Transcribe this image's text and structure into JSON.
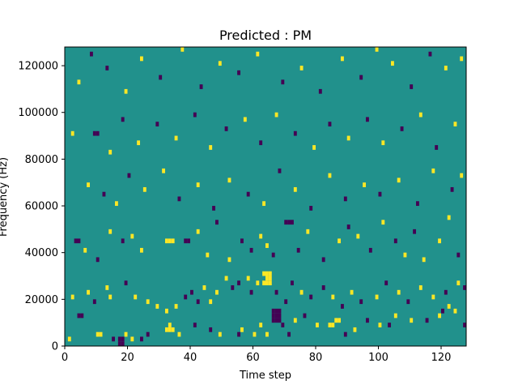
{
  "chart_data": {
    "type": "heatmap",
    "title": "Predicted : PM",
    "xlabel": "Time step",
    "ylabel": "Frequency (Hz)",
    "xlim": [
      0,
      128
    ],
    "ylim": [
      0,
      128000
    ],
    "x_ticks": [
      0,
      20,
      40,
      60,
      80,
      100,
      120
    ],
    "y_ticks": [
      0,
      20000,
      40000,
      60000,
      80000,
      100000,
      120000
    ],
    "y_tick_labels": [
      "0",
      "20000",
      "40000",
      "60000",
      "80000",
      "100000",
      "120000"
    ],
    "grid": false,
    "colors": {
      "background": "#21918c",
      "high": "#fde725",
      "low": "#440154"
    },
    "cells_note_time_step_and_frequency_bin_size": [
      1,
      2000
    ],
    "cells": [
      {
        "t": 17,
        "f": 0,
        "v": "low"
      },
      {
        "t": 18,
        "f": 0,
        "v": "low"
      },
      {
        "t": 17,
        "f": 2000,
        "v": "low"
      },
      {
        "t": 18,
        "f": 2000,
        "v": "low"
      },
      {
        "t": 1,
        "f": 2000,
        "v": "high"
      },
      {
        "t": 10,
        "f": 4000,
        "v": "high"
      },
      {
        "t": 11,
        "f": 4000,
        "v": "high"
      },
      {
        "t": 15,
        "f": 2000,
        "v": "low"
      },
      {
        "t": 19,
        "f": 4000,
        "v": "high"
      },
      {
        "t": 21,
        "f": 2000,
        "v": "high"
      },
      {
        "t": 24,
        "f": 2000,
        "v": "low"
      },
      {
        "t": 26,
        "f": 4000,
        "v": "low"
      },
      {
        "t": 32,
        "f": 6000,
        "v": "high"
      },
      {
        "t": 33,
        "f": 6000,
        "v": "high"
      },
      {
        "t": 34,
        "f": 6000,
        "v": "high"
      },
      {
        "t": 33,
        "f": 8000,
        "v": "high"
      },
      {
        "t": 36,
        "f": 4000,
        "v": "high"
      },
      {
        "t": 41,
        "f": 8000,
        "v": "low"
      },
      {
        "t": 46,
        "f": 6000,
        "v": "low"
      },
      {
        "t": 49,
        "f": 4000,
        "v": "high"
      },
      {
        "t": 55,
        "f": 4000,
        "v": "low"
      },
      {
        "t": 56,
        "f": 6000,
        "v": "high"
      },
      {
        "t": 60,
        "f": 4000,
        "v": "high"
      },
      {
        "t": 62,
        "f": 8000,
        "v": "high"
      },
      {
        "t": 64,
        "f": 4000,
        "v": "high"
      },
      {
        "t": 66,
        "f": 12000,
        "v": "low"
      },
      {
        "t": 67,
        "f": 12000,
        "v": "low"
      },
      {
        "t": 68,
        "f": 12000,
        "v": "low"
      },
      {
        "t": 66,
        "f": 14000,
        "v": "low"
      },
      {
        "t": 67,
        "f": 14000,
        "v": "low"
      },
      {
        "t": 68,
        "f": 14000,
        "v": "low"
      },
      {
        "t": 66,
        "f": 10000,
        "v": "low"
      },
      {
        "t": 67,
        "f": 10000,
        "v": "low"
      },
      {
        "t": 68,
        "f": 10000,
        "v": "low"
      },
      {
        "t": 69,
        "f": 8000,
        "v": "low"
      },
      {
        "t": 71,
        "f": 4000,
        "v": "low"
      },
      {
        "t": 73,
        "f": 10000,
        "v": "high"
      },
      {
        "t": 76,
        "f": 12000,
        "v": "low"
      },
      {
        "t": 80,
        "f": 8000,
        "v": "high"
      },
      {
        "t": 84,
        "f": 8000,
        "v": "high"
      },
      {
        "t": 85,
        "f": 8000,
        "v": "high"
      },
      {
        "t": 86,
        "f": 10000,
        "v": "high"
      },
      {
        "t": 87,
        "f": 10000,
        "v": "high"
      },
      {
        "t": 89,
        "f": 4000,
        "v": "low"
      },
      {
        "t": 92,
        "f": 6000,
        "v": "high"
      },
      {
        "t": 96,
        "f": 10000,
        "v": "low"
      },
      {
        "t": 100,
        "f": 8000,
        "v": "high"
      },
      {
        "t": 103,
        "f": 8000,
        "v": "low"
      },
      {
        "t": 105,
        "f": 12000,
        "v": "high"
      },
      {
        "t": 110,
        "f": 10000,
        "v": "high"
      },
      {
        "t": 115,
        "f": 10000,
        "v": "low"
      },
      {
        "t": 119,
        "f": 12000,
        "v": "high"
      },
      {
        "t": 120,
        "f": 14000,
        "v": "low"
      },
      {
        "t": 122,
        "f": 16000,
        "v": "high"
      },
      {
        "t": 124,
        "f": 14000,
        "v": "high"
      },
      {
        "t": 127,
        "f": 8000,
        "v": "low"
      },
      {
        "t": 4,
        "f": 12000,
        "v": "low"
      },
      {
        "t": 5,
        "f": 12000,
        "v": "low"
      },
      {
        "t": 2,
        "f": 20000,
        "v": "high"
      },
      {
        "t": 7,
        "f": 22000,
        "v": "high"
      },
      {
        "t": 9,
        "f": 18000,
        "v": "low"
      },
      {
        "t": 13,
        "f": 24000,
        "v": "high"
      },
      {
        "t": 14,
        "f": 20000,
        "v": "high"
      },
      {
        "t": 19,
        "f": 26000,
        "v": "low"
      },
      {
        "t": 22,
        "f": 20000,
        "v": "high"
      },
      {
        "t": 26,
        "f": 18000,
        "v": "high"
      },
      {
        "t": 29,
        "f": 16000,
        "v": "high"
      },
      {
        "t": 32,
        "f": 14000,
        "v": "high"
      },
      {
        "t": 35,
        "f": 16000,
        "v": "high"
      },
      {
        "t": 38,
        "f": 20000,
        "v": "low"
      },
      {
        "t": 40,
        "f": 22000,
        "v": "low"
      },
      {
        "t": 42,
        "f": 18000,
        "v": "low"
      },
      {
        "t": 44,
        "f": 24000,
        "v": "high"
      },
      {
        "t": 46,
        "f": 18000,
        "v": "high"
      },
      {
        "t": 48,
        "f": 22000,
        "v": "high"
      },
      {
        "t": 51,
        "f": 28000,
        "v": "high"
      },
      {
        "t": 53,
        "f": 24000,
        "v": "low"
      },
      {
        "t": 55,
        "f": 26000,
        "v": "low"
      },
      {
        "t": 58,
        "f": 28000,
        "v": "high"
      },
      {
        "t": 59,
        "f": 22000,
        "v": "low"
      },
      {
        "t": 61,
        "f": 26000,
        "v": "high"
      },
      {
        "t": 63,
        "f": 30000,
        "v": "high"
      },
      {
        "t": 64,
        "f": 30000,
        "v": "high"
      },
      {
        "t": 65,
        "f": 30000,
        "v": "high"
      },
      {
        "t": 63,
        "f": 26000,
        "v": "high"
      },
      {
        "t": 64,
        "f": 26000,
        "v": "high"
      },
      {
        "t": 65,
        "f": 26000,
        "v": "high"
      },
      {
        "t": 64,
        "f": 28000,
        "v": "high"
      },
      {
        "t": 65,
        "f": 28000,
        "v": "high"
      },
      {
        "t": 67,
        "f": 22000,
        "v": "low"
      },
      {
        "t": 70,
        "f": 18000,
        "v": "low"
      },
      {
        "t": 72,
        "f": 26000,
        "v": "low"
      },
      {
        "t": 75,
        "f": 22000,
        "v": "high"
      },
      {
        "t": 78,
        "f": 20000,
        "v": "low"
      },
      {
        "t": 82,
        "f": 24000,
        "v": "low"
      },
      {
        "t": 85,
        "f": 20000,
        "v": "high"
      },
      {
        "t": 88,
        "f": 16000,
        "v": "low"
      },
      {
        "t": 91,
        "f": 22000,
        "v": "high"
      },
      {
        "t": 94,
        "f": 18000,
        "v": "low"
      },
      {
        "t": 99,
        "f": 20000,
        "v": "high"
      },
      {
        "t": 102,
        "f": 26000,
        "v": "low"
      },
      {
        "t": 106,
        "f": 22000,
        "v": "high"
      },
      {
        "t": 109,
        "f": 18000,
        "v": "low"
      },
      {
        "t": 113,
        "f": 24000,
        "v": "high"
      },
      {
        "t": 117,
        "f": 20000,
        "v": "high"
      },
      {
        "t": 121,
        "f": 22000,
        "v": "low"
      },
      {
        "t": 125,
        "f": 26000,
        "v": "high"
      },
      {
        "t": 127,
        "f": 24000,
        "v": "low"
      },
      {
        "t": 3,
        "f": 44000,
        "v": "low"
      },
      {
        "t": 4,
        "f": 44000,
        "v": "low"
      },
      {
        "t": 6,
        "f": 40000,
        "v": "high"
      },
      {
        "t": 10,
        "f": 36000,
        "v": "low"
      },
      {
        "t": 14,
        "f": 48000,
        "v": "high"
      },
      {
        "t": 18,
        "f": 44000,
        "v": "low"
      },
      {
        "t": 21,
        "f": 46000,
        "v": "high"
      },
      {
        "t": 24,
        "f": 40000,
        "v": "high"
      },
      {
        "t": 32,
        "f": 44000,
        "v": "high"
      },
      {
        "t": 33,
        "f": 44000,
        "v": "high"
      },
      {
        "t": 34,
        "f": 44000,
        "v": "high"
      },
      {
        "t": 38,
        "f": 44000,
        "v": "low"
      },
      {
        "t": 39,
        "f": 44000,
        "v": "low"
      },
      {
        "t": 42,
        "f": 48000,
        "v": "high"
      },
      {
        "t": 45,
        "f": 38000,
        "v": "high"
      },
      {
        "t": 48,
        "f": 52000,
        "v": "low"
      },
      {
        "t": 52,
        "f": 36000,
        "v": "high"
      },
      {
        "t": 56,
        "f": 44000,
        "v": "low"
      },
      {
        "t": 59,
        "f": 40000,
        "v": "low"
      },
      {
        "t": 62,
        "f": 46000,
        "v": "high"
      },
      {
        "t": 64,
        "f": 42000,
        "v": "high"
      },
      {
        "t": 66,
        "f": 38000,
        "v": "low"
      },
      {
        "t": 70,
        "f": 52000,
        "v": "low"
      },
      {
        "t": 71,
        "f": 52000,
        "v": "low"
      },
      {
        "t": 72,
        "f": 52000,
        "v": "low"
      },
      {
        "t": 74,
        "f": 40000,
        "v": "low"
      },
      {
        "t": 77,
        "f": 48000,
        "v": "high"
      },
      {
        "t": 82,
        "f": 36000,
        "v": "low"
      },
      {
        "t": 87,
        "f": 44000,
        "v": "high"
      },
      {
        "t": 90,
        "f": 50000,
        "v": "low"
      },
      {
        "t": 93,
        "f": 46000,
        "v": "high"
      },
      {
        "t": 97,
        "f": 40000,
        "v": "low"
      },
      {
        "t": 101,
        "f": 52000,
        "v": "high"
      },
      {
        "t": 105,
        "f": 44000,
        "v": "low"
      },
      {
        "t": 108,
        "f": 38000,
        "v": "high"
      },
      {
        "t": 111,
        "f": 48000,
        "v": "low"
      },
      {
        "t": 114,
        "f": 36000,
        "v": "high"
      },
      {
        "t": 119,
        "f": 44000,
        "v": "high"
      },
      {
        "t": 122,
        "f": 54000,
        "v": "high"
      },
      {
        "t": 125,
        "f": 38000,
        "v": "low"
      },
      {
        "t": 7,
        "f": 68000,
        "v": "high"
      },
      {
        "t": 12,
        "f": 64000,
        "v": "low"
      },
      {
        "t": 16,
        "f": 60000,
        "v": "high"
      },
      {
        "t": 20,
        "f": 72000,
        "v": "low"
      },
      {
        "t": 25,
        "f": 66000,
        "v": "high"
      },
      {
        "t": 31,
        "f": 74000,
        "v": "high"
      },
      {
        "t": 36,
        "f": 62000,
        "v": "low"
      },
      {
        "t": 42,
        "f": 68000,
        "v": "high"
      },
      {
        "t": 47,
        "f": 58000,
        "v": "low"
      },
      {
        "t": 52,
        "f": 70000,
        "v": "high"
      },
      {
        "t": 58,
        "f": 64000,
        "v": "low"
      },
      {
        "t": 63,
        "f": 60000,
        "v": "high"
      },
      {
        "t": 68,
        "f": 74000,
        "v": "low"
      },
      {
        "t": 73,
        "f": 66000,
        "v": "high"
      },
      {
        "t": 78,
        "f": 58000,
        "v": "low"
      },
      {
        "t": 84,
        "f": 72000,
        "v": "high"
      },
      {
        "t": 89,
        "f": 62000,
        "v": "low"
      },
      {
        "t": 95,
        "f": 68000,
        "v": "high"
      },
      {
        "t": 100,
        "f": 64000,
        "v": "low"
      },
      {
        "t": 106,
        "f": 70000,
        "v": "high"
      },
      {
        "t": 112,
        "f": 60000,
        "v": "low"
      },
      {
        "t": 117,
        "f": 74000,
        "v": "high"
      },
      {
        "t": 123,
        "f": 66000,
        "v": "low"
      },
      {
        "t": 126,
        "f": 72000,
        "v": "high"
      },
      {
        "t": 2,
        "f": 90000,
        "v": "high"
      },
      {
        "t": 9,
        "f": 90000,
        "v": "low"
      },
      {
        "t": 10,
        "f": 90000,
        "v": "low"
      },
      {
        "t": 14,
        "f": 82000,
        "v": "high"
      },
      {
        "t": 18,
        "f": 96000,
        "v": "low"
      },
      {
        "t": 23,
        "f": 86000,
        "v": "high"
      },
      {
        "t": 29,
        "f": 94000,
        "v": "low"
      },
      {
        "t": 35,
        "f": 88000,
        "v": "high"
      },
      {
        "t": 41,
        "f": 98000,
        "v": "low"
      },
      {
        "t": 46,
        "f": 84000,
        "v": "high"
      },
      {
        "t": 51,
        "f": 92000,
        "v": "low"
      },
      {
        "t": 57,
        "f": 96000,
        "v": "high"
      },
      {
        "t": 62,
        "f": 86000,
        "v": "low"
      },
      {
        "t": 67,
        "f": 98000,
        "v": "high"
      },
      {
        "t": 73,
        "f": 90000,
        "v": "low"
      },
      {
        "t": 79,
        "f": 84000,
        "v": "high"
      },
      {
        "t": 84,
        "f": 94000,
        "v": "low"
      },
      {
        "t": 90,
        "f": 88000,
        "v": "high"
      },
      {
        "t": 96,
        "f": 96000,
        "v": "low"
      },
      {
        "t": 101,
        "f": 86000,
        "v": "high"
      },
      {
        "t": 107,
        "f": 92000,
        "v": "low"
      },
      {
        "t": 113,
        "f": 98000,
        "v": "high"
      },
      {
        "t": 118,
        "f": 84000,
        "v": "low"
      },
      {
        "t": 124,
        "f": 94000,
        "v": "high"
      },
      {
        "t": 4,
        "f": 112000,
        "v": "high"
      },
      {
        "t": 8,
        "f": 124000,
        "v": "low"
      },
      {
        "t": 13,
        "f": 118000,
        "v": "low"
      },
      {
        "t": 19,
        "f": 108000,
        "v": "high"
      },
      {
        "t": 24,
        "f": 122000,
        "v": "high"
      },
      {
        "t": 30,
        "f": 114000,
        "v": "low"
      },
      {
        "t": 37,
        "f": 126000,
        "v": "high"
      },
      {
        "t": 43,
        "f": 110000,
        "v": "low"
      },
      {
        "t": 49,
        "f": 120000,
        "v": "high"
      },
      {
        "t": 55,
        "f": 116000,
        "v": "low"
      },
      {
        "t": 61,
        "f": 124000,
        "v": "high"
      },
      {
        "t": 69,
        "f": 112000,
        "v": "low"
      },
      {
        "t": 75,
        "f": 118000,
        "v": "high"
      },
      {
        "t": 81,
        "f": 108000,
        "v": "low"
      },
      {
        "t": 88,
        "f": 122000,
        "v": "high"
      },
      {
        "t": 94,
        "f": 114000,
        "v": "low"
      },
      {
        "t": 99,
        "f": 126000,
        "v": "high"
      },
      {
        "t": 104,
        "f": 120000,
        "v": "high"
      },
      {
        "t": 110,
        "f": 110000,
        "v": "low"
      },
      {
        "t": 116,
        "f": 124000,
        "v": "low"
      },
      {
        "t": 121,
        "f": 118000,
        "v": "high"
      },
      {
        "t": 126,
        "f": 122000,
        "v": "high"
      }
    ]
  }
}
